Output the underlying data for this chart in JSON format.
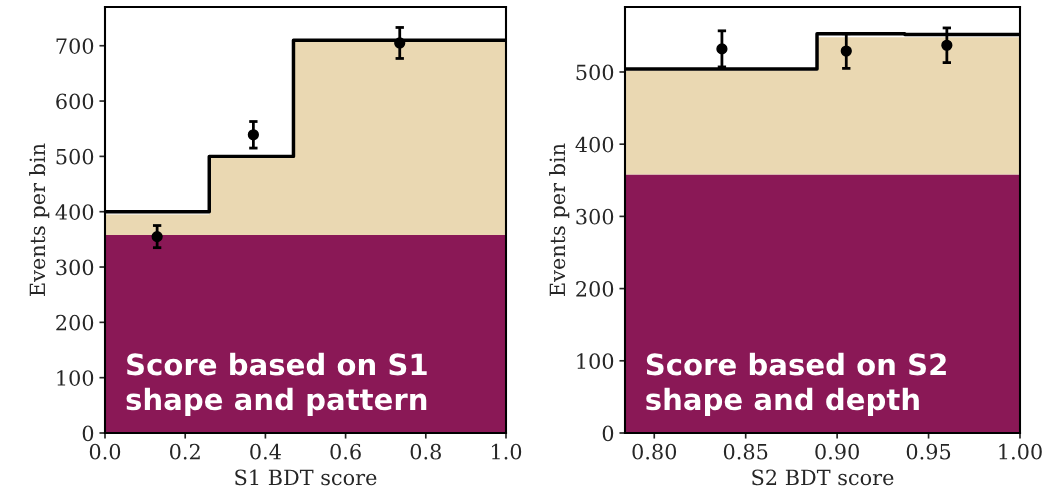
{
  "chart_data": [
    {
      "type": "step",
      "xlabel": "S1 BDT score",
      "ylabel": "Events per bin",
      "stacked": true,
      "series": [
        {
          "type": "area",
          "color": "#8a1856",
          "x": [
            0.0,
            0.26,
            0.47,
            1.0
          ],
          "values": [
            358,
            358,
            358,
            358
          ]
        },
        {
          "type": "area",
          "color": "#ead8b2",
          "x": [
            0.0,
            0.26,
            0.47,
            1.0
          ],
          "values": [
            37,
            142,
            350,
            350
          ]
        },
        {
          "color": "#000000",
          "x": [
            0.0,
            0.26,
            0.47,
            1.0
          ],
          "values": [
            400,
            500,
            710,
            710
          ]
        },
        {
          "type": "scatter",
          "color": "#000000",
          "x": [
            0.13,
            0.37,
            0.735
          ],
          "values": [
            355,
            539,
            705
          ],
          "errors": [
            20,
            24,
            28
          ],
          "marker": "circle"
        }
      ],
      "xlim": [
        0.0,
        1.0
      ],
      "xticks": [
        {
          "value": 0.0,
          "label": "0.0"
        },
        {
          "value": 0.2,
          "label": "0.2"
        },
        {
          "value": 0.4,
          "label": "0.4"
        },
        {
          "value": 0.6,
          "label": "0.6"
        },
        {
          "value": 0.8,
          "label": "0.8"
        },
        {
          "value": 1.0,
          "label": "1.0"
        }
      ],
      "ylim": [
        0,
        770
      ],
      "yticks": [
        0,
        100,
        200,
        300,
        400,
        500,
        600,
        700
      ],
      "annotations": [
        "Score based on S1\nshape and pattern"
      ]
    },
    {
      "type": "step",
      "xlabel": "S2 BDT score",
      "ylabel": "Events per bin",
      "stacked": true,
      "series": [
        {
          "type": "area",
          "color": "#8a1856",
          "x": [
            0.784,
            0.889,
            0.937,
            1.0
          ],
          "values": [
            358,
            358,
            358,
            358
          ]
        },
        {
          "type": "area",
          "color": "#ead8b2",
          "x": [
            0.784,
            0.889,
            0.937,
            1.0
          ],
          "values": [
            144,
            190,
            190,
            190
          ]
        },
        {
          "color": "#000000",
          "x": [
            0.784,
            0.889,
            0.937,
            1.0
          ],
          "values": [
            504,
            553,
            552,
            552
          ]
        },
        {
          "type": "scatter",
          "color": "#000000",
          "x": [
            0.837,
            0.905,
            0.96
          ],
          "values": [
            532,
            529,
            537
          ],
          "errors": [
            25,
            24,
            24
          ],
          "marker": "circle"
        }
      ],
      "xlim": [
        0.784,
        1.0
      ],
      "xticks": [
        {
          "value": 0.8,
          "label": "0.80"
        },
        {
          "value": 0.85,
          "label": "0.85"
        },
        {
          "value": 0.9,
          "label": "0.90"
        },
        {
          "value": 0.95,
          "label": "0.95"
        },
        {
          "value": 1.0,
          "label": "1.00"
        }
      ],
      "ylim": [
        0,
        590
      ],
      "yticks": [
        0,
        100,
        200,
        300,
        400,
        500
      ],
      "annotations": [
        "Score based on S2\nshape and depth"
      ]
    }
  ]
}
